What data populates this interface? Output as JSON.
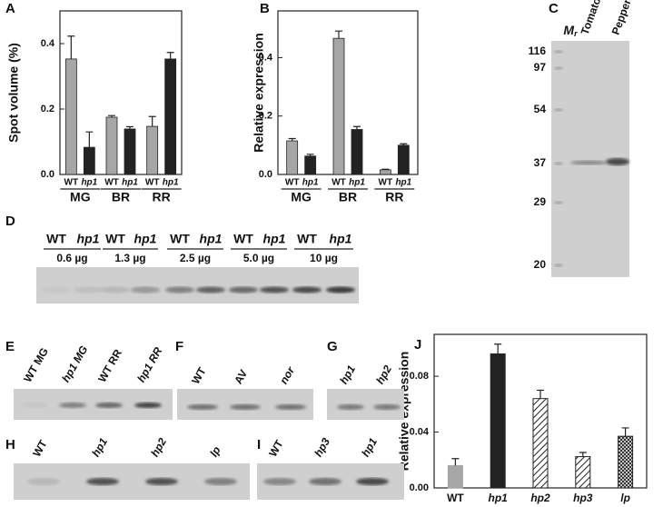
{
  "chart_data": [
    {
      "type": "bar",
      "panel": "A",
      "ylabel": "Spot volume (%)",
      "categories": [
        "MG",
        "BR",
        "RR"
      ],
      "series": [
        {
          "name": "WT",
          "color": "#a6a6a6",
          "values": [
            0.353,
            0.175,
            0.147
          ],
          "errors": [
            0.07,
            0.005,
            0.03
          ]
        },
        {
          "name": "hp1",
          "color": "#222222",
          "values": [
            0.083,
            0.139,
            0.353
          ],
          "errors": [
            0.047,
            0.007,
            0.02
          ]
        }
      ],
      "ylim": [
        0,
        0.5
      ],
      "yticks": [
        {
          "value": 0,
          "label": "0.0"
        },
        0.2,
        0.4
      ]
    },
    {
      "type": "bar",
      "panel": "B",
      "ylabel": "Relative expression",
      "categories": [
        "MG",
        "BR",
        "RR"
      ],
      "series": [
        {
          "name": "WT",
          "color": "#a6a6a6",
          "values": [
            0.115,
            0.466,
            0.016
          ],
          "errors": [
            0.008,
            0.025,
            0.002
          ]
        },
        {
          "name": "hp1",
          "color": "#222222",
          "values": [
            0.063,
            0.154,
            0.1
          ],
          "errors": [
            0.006,
            0.01,
            0.005
          ]
        }
      ],
      "ylim": [
        0,
        0.56
      ],
      "yticks": [
        {
          "value": 0,
          "label": "0.0"
        },
        0.2,
        0.4
      ]
    },
    {
      "type": "bar",
      "panel": "J",
      "ylabel": "Relative expression",
      "categories": [
        "WT",
        "hp1",
        "hp2",
        "hp3",
        "lp"
      ],
      "values": [
        0.016,
        0.096,
        0.064,
        0.0224,
        0.037
      ],
      "errors": [
        0.005,
        0.007,
        0.006,
        0.003,
        0.006
      ],
      "colors": [
        "#a6a6a6",
        "#222222",
        "#222222",
        "#222222",
        "#222222"
      ],
      "patterns": [
        "solid",
        "solid",
        "diagonal",
        "diagonal",
        "cross"
      ],
      "ylim": [
        0,
        0.11
      ],
      "yticks": [
        {
          "value": 0,
          "label": "0.00"
        },
        0.04,
        0.08
      ]
    }
  ],
  "gels": {
    "C": {
      "label": "C",
      "marker_title": "M",
      "marker_subscript": "r",
      "lanes": [
        "Tomato",
        "Pepper"
      ],
      "markers": [
        "116",
        "97",
        "54",
        "37",
        "29",
        "20"
      ]
    },
    "D": {
      "label": "D",
      "lanes": [
        "WT",
        "hp1",
        "WT",
        "hp1",
        "WT",
        "hp1",
        "WT",
        "hp1",
        "WT",
        "hp1"
      ],
      "amounts": [
        "0.6 µg",
        "1.3 µg",
        "2.5 µg",
        "5.0 µg",
        "10 µg"
      ]
    },
    "E": {
      "label": "E",
      "lanes": [
        "WT MG",
        "hp1 MG",
        "WT RR",
        "hp1 RR"
      ]
    },
    "F": {
      "label": "F",
      "lanes": [
        "WT",
        "AV",
        "nor"
      ]
    },
    "G": {
      "label": "G",
      "lanes": [
        "hp1",
        "hp2"
      ]
    },
    "H": {
      "label": "H",
      "lanes": [
        "WT",
        "hp1",
        "hp2",
        "lp"
      ]
    },
    "I": {
      "label": "I",
      "lanes": [
        "WT",
        "hp3",
        "hp1"
      ]
    }
  }
}
